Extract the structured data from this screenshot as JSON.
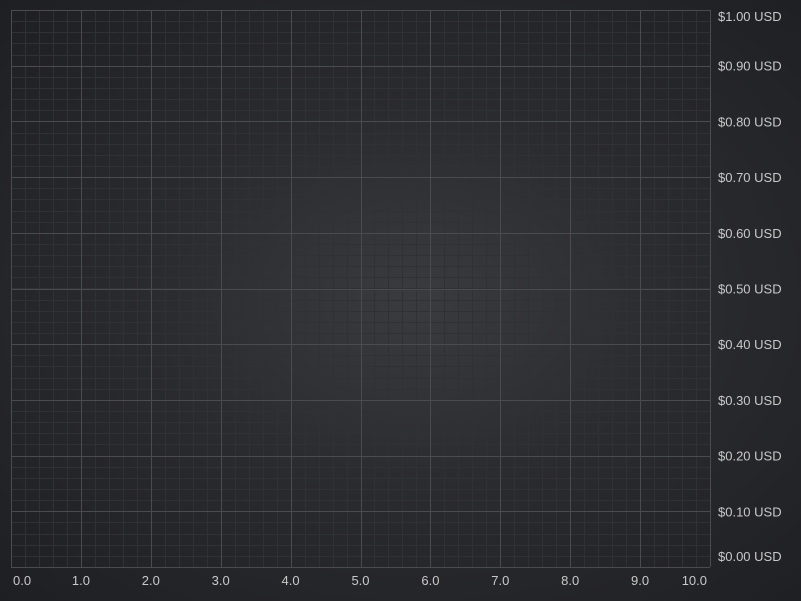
{
  "chart_data": {
    "type": "line",
    "title": "",
    "xlabel": "",
    "ylabel": "",
    "x": [],
    "series": [],
    "xlim": [
      0,
      10
    ],
    "ylim": [
      0,
      1
    ],
    "x_ticks": [
      0,
      1,
      2,
      3,
      4,
      5,
      6,
      7,
      8,
      9,
      10
    ],
    "x_tick_labels": [
      "0.0",
      "1.0",
      "2.0",
      "3.0",
      "4.0",
      "5.0",
      "6.0",
      "7.0",
      "8.0",
      "9.0",
      "10.0"
    ],
    "y_ticks": [
      0,
      0.1,
      0.2,
      0.3,
      0.4,
      0.5,
      0.6,
      0.7,
      0.8,
      0.9,
      1.0
    ],
    "y_tick_labels": [
      "$0.00 USD",
      "$0.10 USD",
      "$0.20 USD",
      "$0.30 USD",
      "$0.40 USD",
      "$0.50 USD",
      "$0.60 USD",
      "$0.70 USD",
      "$0.80 USD",
      "$0.90 USD",
      "$1.00 USD"
    ],
    "y_axis_position": "right",
    "x_axis_position": "bottom",
    "grid": true,
    "minor_grid": true,
    "legend": "none",
    "colors": {
      "background": "#2a2b2f",
      "major_grid": "#4a4b4f",
      "minor_grid": "#303135",
      "tick_label": "#c9c9c9"
    }
  }
}
